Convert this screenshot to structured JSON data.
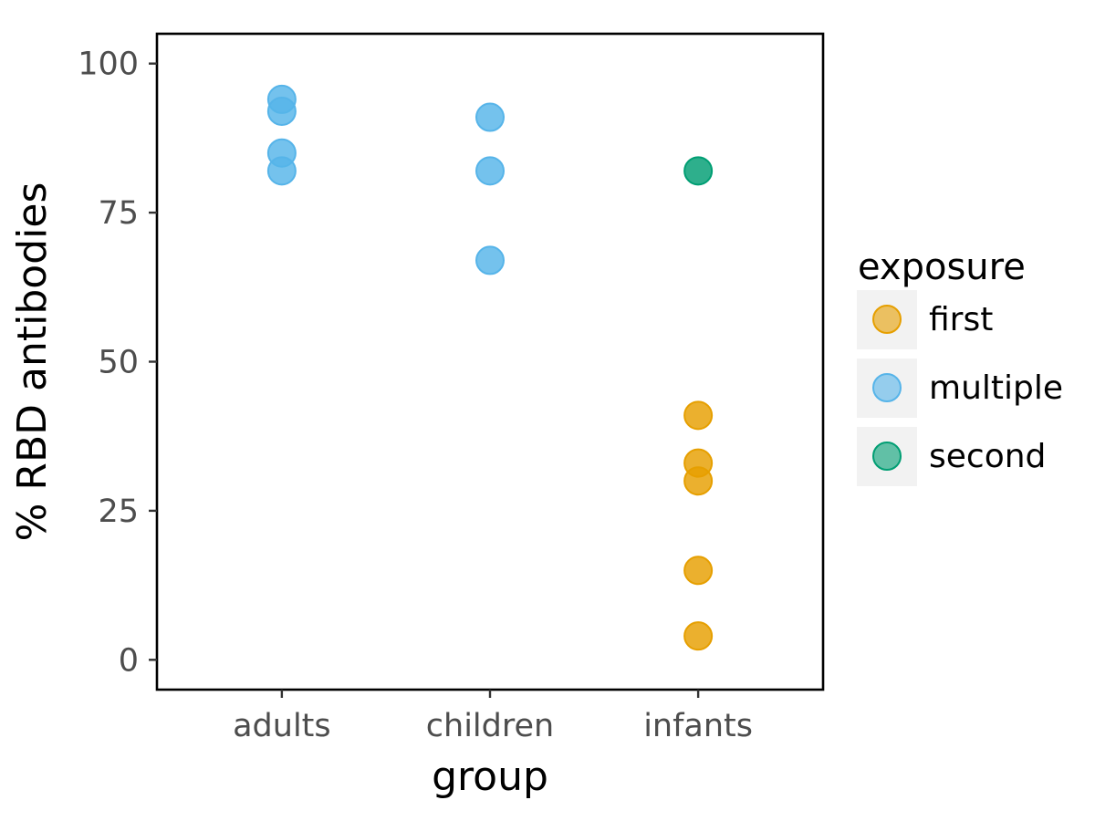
{
  "chart_data": {
    "type": "scatter",
    "title": "",
    "xlabel": "group",
    "ylabel": "% RBD antibodies",
    "categories": [
      "adults",
      "children",
      "infants"
    ],
    "yticks": [
      "0",
      "25",
      "50",
      "75",
      "100"
    ],
    "ylim": [
      -5,
      105
    ],
    "grid": false,
    "legend": {
      "title": "exposure",
      "position": "right",
      "entries": [
        {
          "name": "first",
          "color": "#E69F00"
        },
        {
          "name": "multiple",
          "color": "#56B4E9"
        },
        {
          "name": "second",
          "color": "#009E73"
        }
      ]
    },
    "series": [
      {
        "name": "first",
        "color": "#E69F00",
        "points": [
          {
            "x": "infants",
            "y": 41
          },
          {
            "x": "infants",
            "y": 33
          },
          {
            "x": "infants",
            "y": 30
          },
          {
            "x": "infants",
            "y": 15
          },
          {
            "x": "infants",
            "y": 4
          }
        ]
      },
      {
        "name": "multiple",
        "color": "#56B4E9",
        "points": [
          {
            "x": "adults",
            "y": 94
          },
          {
            "x": "adults",
            "y": 92
          },
          {
            "x": "adults",
            "y": 85
          },
          {
            "x": "adults",
            "y": 82
          },
          {
            "x": "children",
            "y": 91
          },
          {
            "x": "children",
            "y": 82
          },
          {
            "x": "children",
            "y": 67
          }
        ]
      },
      {
        "name": "second",
        "color": "#009E73",
        "points": [
          {
            "x": "infants",
            "y": 82
          }
        ]
      }
    ]
  }
}
